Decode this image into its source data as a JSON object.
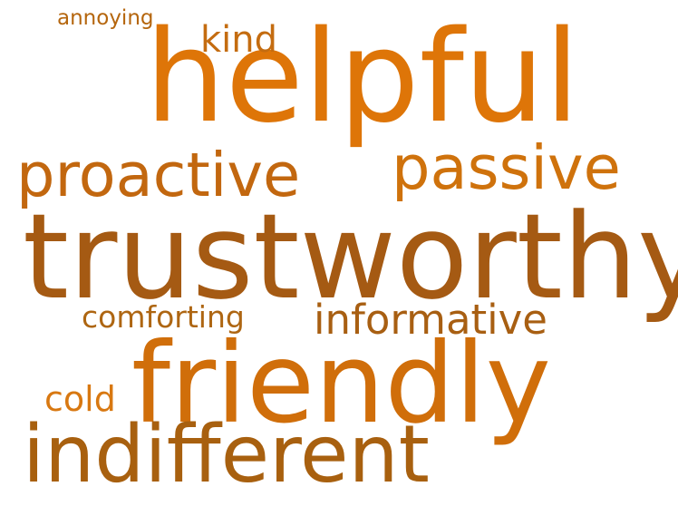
{
  "words": {
    "helpful": {
      "text": "helpful",
      "color": "#DE7508"
    },
    "trustworthy": {
      "text": "trustworthy",
      "color": "#A55A13"
    },
    "friendly": {
      "text": "friendly",
      "color": "#D06E0A"
    },
    "indifferent": {
      "text": "indifferent",
      "color": "#A8600F"
    },
    "proactive": {
      "text": "proactive",
      "color": "#C2670F"
    },
    "passive": {
      "text": "passive",
      "color": "#CF720C"
    },
    "informative": {
      "text": "informative",
      "color": "#A85F12"
    },
    "comforting": {
      "text": "comforting",
      "color": "#AE6612"
    },
    "kind": {
      "text": "kind",
      "color": "#C46C10"
    },
    "cold": {
      "text": "cold",
      "color": "#D87811"
    },
    "annoying": {
      "text": "annoying",
      "color": "#B5660E"
    }
  }
}
